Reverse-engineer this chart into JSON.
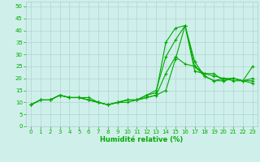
{
  "xlabel": "Humidité relative (%)",
  "xlim": [
    -0.5,
    23.5
  ],
  "ylim": [
    0,
    52
  ],
  "yticks": [
    0,
    5,
    10,
    15,
    20,
    25,
    30,
    35,
    40,
    45,
    50
  ],
  "xticks": [
    0,
    1,
    2,
    3,
    4,
    5,
    6,
    7,
    8,
    9,
    10,
    11,
    12,
    13,
    14,
    15,
    16,
    17,
    18,
    19,
    20,
    21,
    22,
    23
  ],
  "background_color": "#cff0ea",
  "grid_color": "#aacccc",
  "line_color": "#00aa00",
  "series": [
    [
      9,
      11,
      11,
      13,
      12,
      12,
      11,
      10,
      9,
      10,
      11,
      11,
      12,
      13,
      15,
      28,
      42,
      27,
      21,
      19,
      20,
      20,
      19,
      25
    ],
    [
      9,
      11,
      11,
      13,
      12,
      12,
      12,
      10,
      9,
      10,
      11,
      11,
      13,
      14,
      35,
      41,
      42,
      23,
      22,
      22,
      19,
      20,
      19,
      19
    ],
    [
      9,
      11,
      11,
      13,
      12,
      12,
      11,
      10,
      9,
      10,
      11,
      11,
      13,
      15,
      29,
      36,
      42,
      25,
      22,
      21,
      20,
      19,
      19,
      20
    ],
    [
      9,
      11,
      11,
      13,
      12,
      12,
      11,
      10,
      9,
      10,
      10,
      11,
      12,
      13,
      22,
      29,
      26,
      25,
      21,
      19,
      19,
      20,
      19,
      18
    ]
  ],
  "tick_label_size": 5,
  "xlabel_size": 6,
  "marker": "+",
  "markersize": 3,
  "linewidth": 0.8
}
